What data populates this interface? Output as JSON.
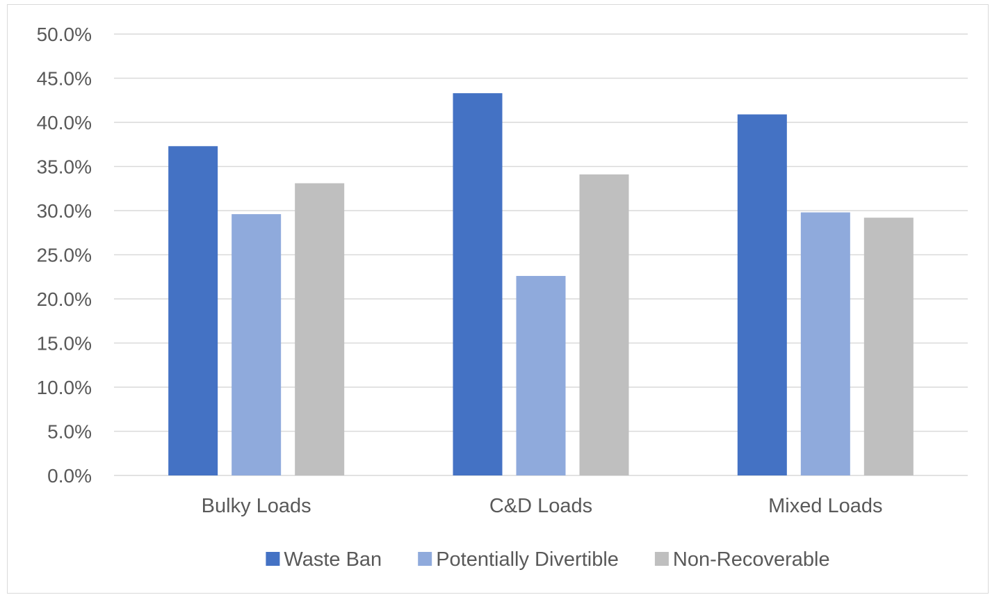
{
  "chart_data": {
    "type": "bar",
    "categories": [
      "Bulky Loads",
      "C&D Loads",
      "Mixed Loads"
    ],
    "series": [
      {
        "name": "Waste Ban",
        "values": [
          37.3,
          43.3,
          40.9
        ],
        "color": "#4472c4"
      },
      {
        "name": "Potentially Divertible",
        "values": [
          29.6,
          22.6,
          29.8
        ],
        "color": "#8faadc"
      },
      {
        "name": "Non-Recoverable",
        "values": [
          33.1,
          34.1,
          29.2
        ],
        "color": "#bfbfbf"
      }
    ],
    "ylim": [
      0,
      50
    ],
    "ytick_step": 5,
    "ytick_format": "percent_1dp",
    "grid": true,
    "legend_position": "bottom",
    "gridline_color": "#d9d9d9"
  }
}
